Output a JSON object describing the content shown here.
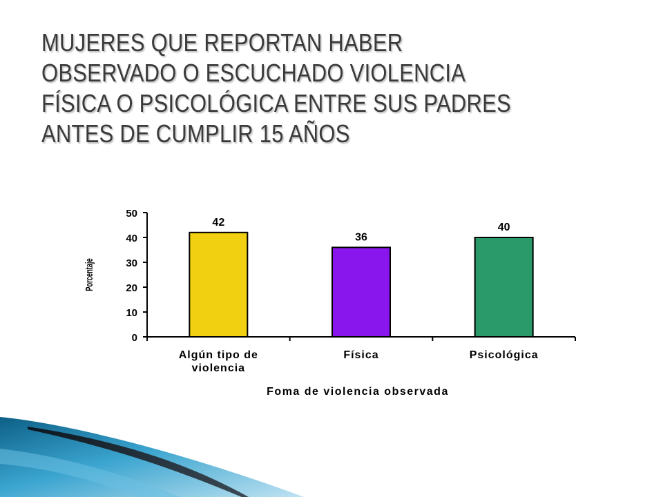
{
  "slide": {
    "title": "MUJERES QUE REPORTAN HABER OBSERVADO O ESCUCHADO VIOLENCIA FÍSICA O PSICOLÓGICA ENTRE SUS PADRES ANTES DE CUMPLIR 15 AÑOS"
  },
  "chart_data": {
    "type": "bar",
    "title": "",
    "categories": [
      [
        "Algún tipo de",
        "violencia"
      ],
      [
        "Física"
      ],
      [
        "Psicológica"
      ]
    ],
    "values": [
      42,
      36,
      40
    ],
    "data_labels": [
      "42",
      "36",
      "40"
    ],
    "colors": [
      "#f0d010",
      "#8a16ee",
      "#2a9a6a"
    ],
    "xlabel": "Foma de violencia observada",
    "ylabel": "Porcentaje",
    "ylim": [
      0,
      50
    ],
    "yticks": [
      0,
      10,
      20,
      30,
      40,
      50
    ],
    "grid": false,
    "legend": "none"
  }
}
